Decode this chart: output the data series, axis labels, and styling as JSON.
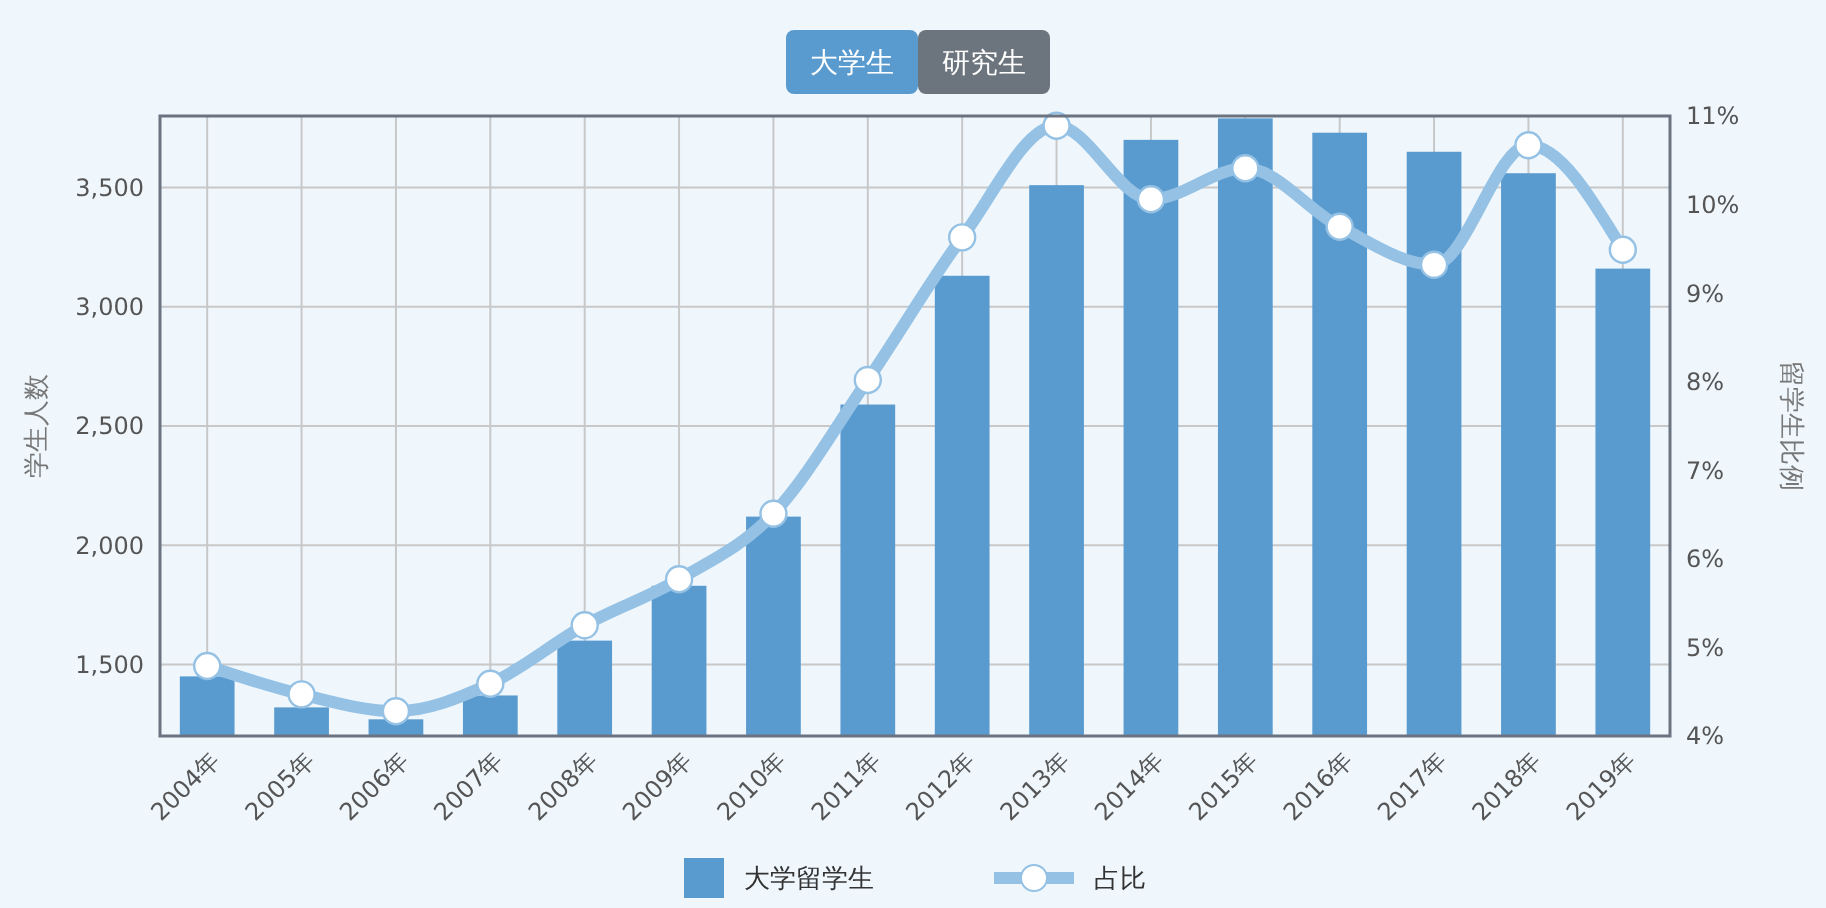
{
  "chart_data": {
    "type": "bar",
    "ylabel": "学生人数",
    "y2label": "留学生比例",
    "categories": [
      "2004年",
      "2005年",
      "2006年",
      "2007年",
      "2008年",
      "2009年",
      "2010年",
      "2011年",
      "2012年",
      "2013年",
      "2014年",
      "2015年",
      "2016年",
      "2017年",
      "2018年",
      "2019年"
    ],
    "series": [
      {
        "name": "大学留学生",
        "color": "#5a9bcf",
        "values": [
          1450,
          1320,
          1270,
          1370,
          1600,
          1830,
          2120,
          2590,
          3130,
          3510,
          3700,
          3790,
          3730,
          3650,
          3560,
          3160
        ]
      },
      {
        "name": "占比",
        "type": "line",
        "axis": "y2",
        "color": "#94c1e4",
        "values": [
          4.79,
          4.47,
          4.28,
          4.59,
          5.25,
          5.77,
          6.51,
          8.02,
          9.63,
          10.89,
          10.06,
          10.41,
          9.75,
          9.32,
          10.67,
          9.49
        ]
      }
    ],
    "ylim": [
      1200,
      3800
    ],
    "yticks": [
      {
        "value": 1500,
        "label": "1,500"
      },
      {
        "value": 2000,
        "label": "2,000"
      },
      {
        "value": 2500,
        "label": "2,500"
      },
      {
        "value": 3000,
        "label": "3,000"
      },
      {
        "value": 3500,
        "label": "3,500"
      }
    ],
    "y2lim": [
      4,
      11
    ],
    "y2ticks": [
      {
        "value": 4,
        "label": "4%"
      },
      {
        "value": 5,
        "label": "5%"
      },
      {
        "value": 6,
        "label": "6%"
      },
      {
        "value": 7,
        "label": "7%"
      },
      {
        "value": 8,
        "label": "8%"
      },
      {
        "value": 9,
        "label": "9%"
      },
      {
        "value": 10,
        "label": "10%"
      },
      {
        "value": 11,
        "label": "11%"
      }
    ],
    "annotations": [
      "大学生",
      "研究生"
    ],
    "grid": true,
    "legend": "bottom",
    "marker": "circle",
    "line_style": "solid"
  }
}
